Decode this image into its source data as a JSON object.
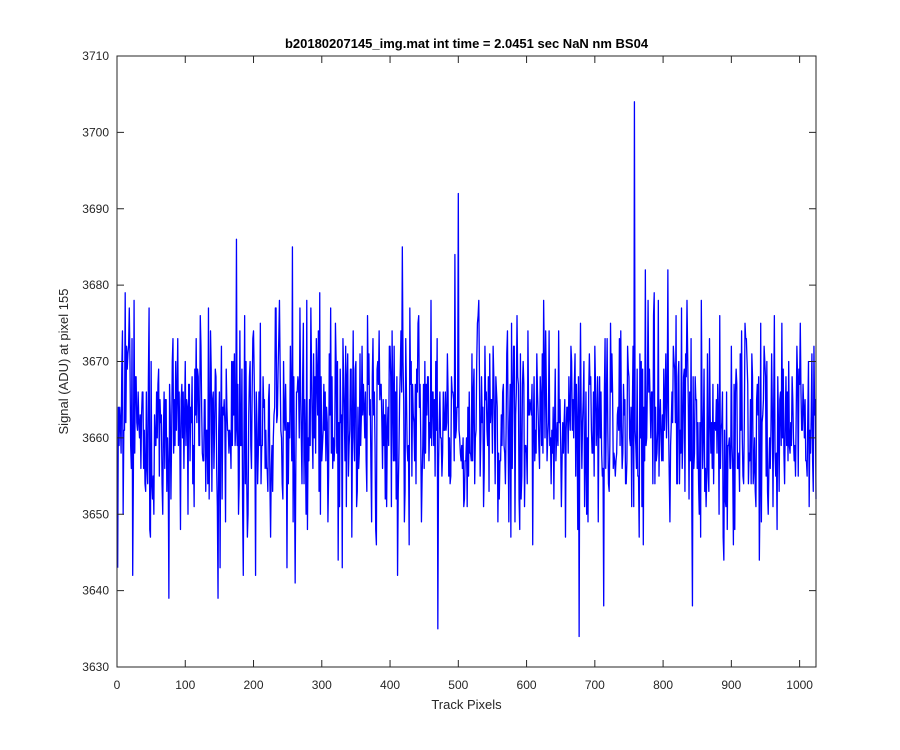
{
  "chart_data": {
    "type": "line",
    "title": "b20180207145_img.mat int time = 2.0451 sec  NaN nm BS04",
    "xlabel": "Track Pixels",
    "ylabel": "Signal (ADU) at pixel 155",
    "xlim": [
      0,
      1024
    ],
    "ylim": [
      3630,
      3710
    ],
    "xticks": [
      0,
      100,
      200,
      300,
      400,
      500,
      600,
      700,
      800,
      900,
      1000
    ],
    "yticks": [
      3630,
      3640,
      3650,
      3660,
      3670,
      3680,
      3690,
      3700,
      3710
    ],
    "grid": false,
    "line_color": "#0000ff",
    "series": [
      {
        "x_start": 1,
        "x_step": 1,
        "note_points": 1024,
        "values_description": "noise around 3662 with standard deviation ~8 ADU",
        "key_points": [
          {
            "x": 1,
            "y": 3643
          },
          {
            "x": 12,
            "y": 3679
          },
          {
            "x": 76,
            "y": 3639
          },
          {
            "x": 148,
            "y": 3639
          },
          {
            "x": 175,
            "y": 3686
          },
          {
            "x": 257,
            "y": 3685
          },
          {
            "x": 261,
            "y": 3641
          },
          {
            "x": 418,
            "y": 3685
          },
          {
            "x": 470,
            "y": 3635
          },
          {
            "x": 495,
            "y": 3684
          },
          {
            "x": 500,
            "y": 3692
          },
          {
            "x": 677,
            "y": 3634
          },
          {
            "x": 713,
            "y": 3638
          },
          {
            "x": 758,
            "y": 3704
          },
          {
            "x": 843,
            "y": 3638
          },
          {
            "x": 1024,
            "y": 3652
          }
        ]
      }
    ]
  }
}
